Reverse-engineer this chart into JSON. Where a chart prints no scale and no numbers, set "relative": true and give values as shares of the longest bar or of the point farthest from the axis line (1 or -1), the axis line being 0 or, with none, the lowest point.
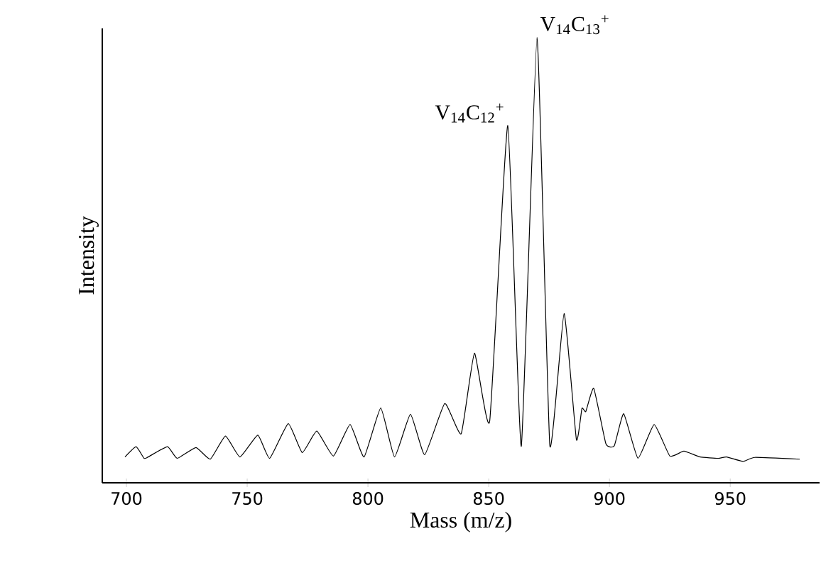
{
  "chart_data": {
    "type": "line",
    "relative": true,
    "xlabel": "Mass (m/z)",
    "ylabel": "Intensity",
    "xlim": [
      690,
      987
    ],
    "xticks": [
      700,
      750,
      800,
      850,
      900,
      950
    ],
    "x": [
      699.4,
      704,
      707.3,
      null,
      709,
      717,
      721,
      728.8,
      734.7,
      741,
      747,
      754.4,
      759.3,
      767,
      772.8,
      778.8,
      785.7,
      792.6,
      798.4,
      805.3,
      811,
      817.6,
      823.5,
      831.8,
      838.6,
      844.1,
      850.4,
      857.9,
      863.5,
      870,
      875.3,
      881.2,
      886.3,
      888.6,
      890.2,
      893.5,
      898.5,
      902,
      905.9,
      911.8,
      918.5,
      925,
      930.8,
      937.6,
      945,
      948.5,
      955.3,
      960.2,
      978.8
    ],
    "series": [
      {
        "color": "#000000",
        "values": [
          0.058,
          0.081,
          0.055,
          null,
          0.058,
          0.081,
          0.055,
          0.079,
          0.053,
          0.105,
          0.058,
          0.107,
          0.055,
          0.133,
          0.068,
          0.116,
          0.06,
          0.131,
          0.058,
          0.168,
          0.058,
          0.154,
          0.063,
          0.178,
          0.11,
          0.291,
          0.138,
          0.802,
          0.082,
          1,
          0.084,
          0.38,
          0.097,
          0.167,
          0.16,
          0.212,
          0.088,
          0.083,
          0.155,
          0.055,
          0.131,
          0.06,
          0.071,
          0.058,
          0.055,
          0.058,
          0.048,
          0.057,
          0.053
        ]
      }
    ],
    "annotations": [
      {
        "text": "V$_{14}$C$_{12}$$^{+}$",
        "x": 857.9,
        "y": 0.802
      },
      {
        "text": "V$_{14}$C$_{13}$$^{+}$",
        "x": 870,
        "y": 1
      }
    ],
    "grid": false,
    "marker": "none",
    "line_style": "solid"
  }
}
